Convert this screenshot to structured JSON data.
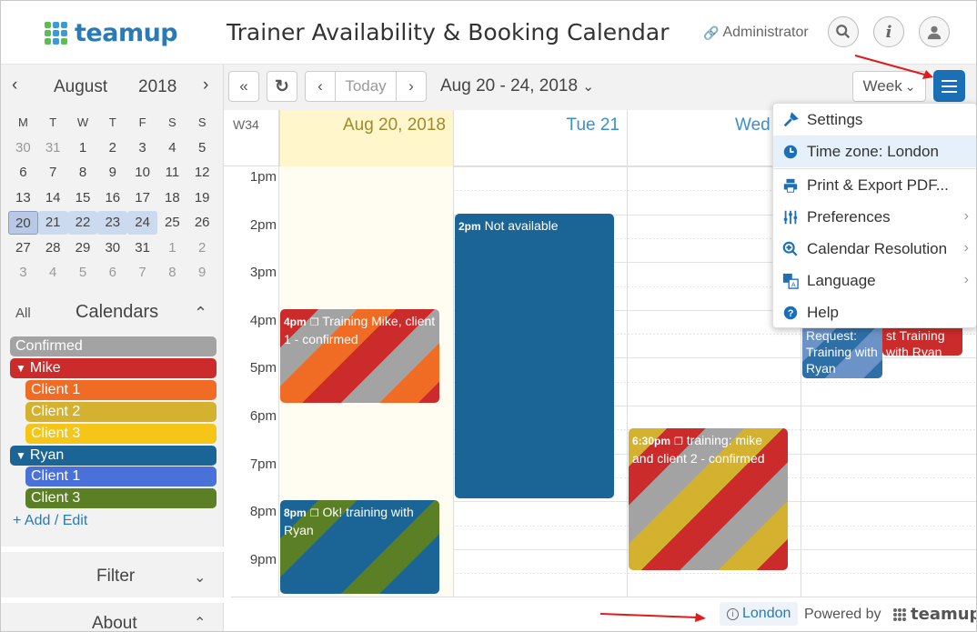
{
  "header": {
    "logo_text": "teamup",
    "title": "Trainer Availability & Booking Calendar",
    "admin_label": "Administrator",
    "icons": [
      "search-icon",
      "info-icon",
      "user-icon"
    ]
  },
  "mini_calendar": {
    "month": "August",
    "year": "2018",
    "weekdays": [
      "M",
      "T",
      "W",
      "T",
      "F",
      "S",
      "S"
    ],
    "rows": [
      [
        "30",
        "31",
        "1",
        "2",
        "3",
        "4",
        "5"
      ],
      [
        "6",
        "7",
        "8",
        "9",
        "10",
        "11",
        "12"
      ],
      [
        "13",
        "14",
        "15",
        "16",
        "17",
        "18",
        "19"
      ],
      [
        "20",
        "21",
        "22",
        "23",
        "24",
        "25",
        "26"
      ],
      [
        "27",
        "28",
        "29",
        "30",
        "31",
        "1",
        "2"
      ],
      [
        "3",
        "4",
        "5",
        "6",
        "7",
        "8",
        "9"
      ]
    ]
  },
  "calendars": {
    "all_label": "All",
    "title": "Calendars",
    "items": [
      {
        "label": "Confirmed",
        "color": "#a3a3a3",
        "indent": 0,
        "arrow": ""
      },
      {
        "label": "Mike",
        "color": "#cc2b2b",
        "indent": 0,
        "arrow": "▼"
      },
      {
        "label": "Client 1",
        "color": "#f06b24",
        "indent": 1,
        "arrow": ""
      },
      {
        "label": "Client 2",
        "color": "#d4b12e",
        "indent": 1,
        "arrow": ""
      },
      {
        "label": "Client 3",
        "color": "#f5c518",
        "indent": 1,
        "arrow": ""
      },
      {
        "label": "Ryan",
        "color": "#1a6496",
        "indent": 0,
        "arrow": "▼"
      },
      {
        "label": "Client 1",
        "color": "#4a70d9",
        "indent": 1,
        "arrow": ""
      },
      {
        "label": "Client 3",
        "color": "#5a7f24",
        "indent": 1,
        "arrow": ""
      }
    ],
    "add_edit": "+ Add / Edit"
  },
  "filter_label": "Filter",
  "about_label": "About",
  "toolbar": {
    "today": "Today",
    "date_range": "Aug 20 - 24, 2018",
    "view": "Week"
  },
  "grid": {
    "week_no": "W34",
    "columns": [
      "Aug 20, 2018",
      "Tue 21",
      "Wed"
    ],
    "times": [
      "1pm",
      "2pm",
      "3pm",
      "4pm",
      "5pm",
      "6pm",
      "7pm",
      "8pm",
      "9pm"
    ]
  },
  "events": [
    {
      "time": "4pm",
      "title": " Training Mike, client 1 - confirmed",
      "kind": "mike-c1"
    },
    {
      "time": "2pm",
      "title": " Not available",
      "kind": "na"
    },
    {
      "time": "8pm",
      "title": " Ok! training with Ryan",
      "kind": "ryan-c3"
    },
    {
      "time": "6:30pm",
      "title": " training: mike and client 2 - confirmed",
      "kind": "mike-c2"
    },
    {
      "time": "",
      "title": "Request: Training with Ryan",
      "kind": "req"
    },
    {
      "time": "",
      "title": "st Training with Ryan",
      "kind": "red"
    }
  ],
  "menu": {
    "items": [
      {
        "label": "Settings",
        "icon": "tools-icon",
        "submenu": false
      },
      {
        "label": "Time zone: London",
        "icon": "clock-icon",
        "submenu": false
      },
      {
        "label": "Print & Export PDF...",
        "icon": "printer-icon",
        "submenu": false
      },
      {
        "label": "Preferences",
        "icon": "sliders-icon",
        "submenu": true
      },
      {
        "label": "Calendar Resolution",
        "icon": "zoom-icon",
        "submenu": true
      },
      {
        "label": "Language",
        "icon": "translate-icon",
        "submenu": true
      },
      {
        "label": "Help",
        "icon": "help-icon",
        "submenu": false
      }
    ]
  },
  "footer": {
    "timezone": "London",
    "powered_by": "Powered by",
    "logo_text": "teamup"
  }
}
